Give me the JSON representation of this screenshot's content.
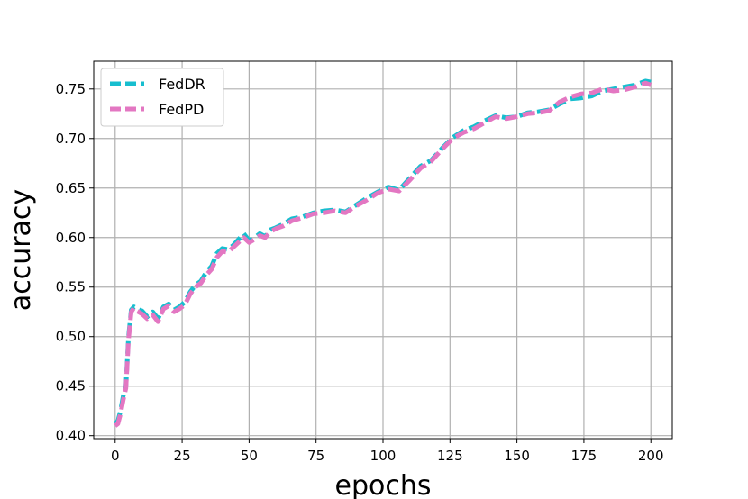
{
  "chart_data": {
    "type": "line",
    "title": "",
    "xlabel": "epochs",
    "ylabel": "accuracy",
    "xlim": [
      -8,
      208
    ],
    "ylim": [
      0.397,
      0.778
    ],
    "xticks": [
      0,
      25,
      50,
      75,
      100,
      125,
      150,
      175,
      200
    ],
    "yticks": [
      0.4,
      0.45,
      0.5,
      0.55,
      0.6,
      0.65,
      0.7,
      0.75
    ],
    "grid": true,
    "legend": "top-left",
    "series": [
      {
        "name": "FedDR",
        "color": "#17becf",
        "dash": "dashed",
        "x": [
          0,
          1,
          2,
          3,
          4,
          5,
          6,
          7,
          8,
          10,
          12,
          14,
          16,
          18,
          20,
          22,
          24,
          26,
          28,
          30,
          32,
          34,
          36,
          38,
          40,
          42,
          44,
          46,
          48,
          50,
          52,
          54,
          56,
          58,
          60,
          63,
          66,
          70,
          74,
          78,
          82,
          86,
          90,
          94,
          98,
          102,
          106,
          110,
          114,
          118,
          122,
          126,
          130,
          134,
          138,
          142,
          146,
          150,
          154,
          158,
          162,
          166,
          170,
          174,
          178,
          182,
          186,
          190,
          194,
          198,
          200
        ],
        "y": [
          0.412,
          0.415,
          0.425,
          0.44,
          0.45,
          0.5,
          0.527,
          0.53,
          0.528,
          0.526,
          0.52,
          0.525,
          0.518,
          0.53,
          0.533,
          0.527,
          0.53,
          0.535,
          0.545,
          0.552,
          0.556,
          0.565,
          0.571,
          0.584,
          0.589,
          0.588,
          0.592,
          0.598,
          0.604,
          0.597,
          0.6,
          0.604,
          0.601,
          0.608,
          0.61,
          0.614,
          0.619,
          0.621,
          0.625,
          0.627,
          0.628,
          0.626,
          0.633,
          0.64,
          0.646,
          0.651,
          0.648,
          0.66,
          0.672,
          0.678,
          0.69,
          0.701,
          0.708,
          0.712,
          0.718,
          0.723,
          0.721,
          0.722,
          0.726,
          0.727,
          0.729,
          0.735,
          0.74,
          0.741,
          0.743,
          0.748,
          0.75,
          0.752,
          0.754,
          0.758,
          0.757
        ]
      },
      {
        "name": "FedPD",
        "color": "#e377c2",
        "dash": "dashed",
        "x": [
          0,
          1,
          2,
          3,
          4,
          5,
          6,
          7,
          8,
          10,
          12,
          14,
          16,
          18,
          20,
          22,
          24,
          26,
          28,
          30,
          32,
          34,
          36,
          38,
          40,
          42,
          44,
          46,
          48,
          50,
          52,
          54,
          56,
          58,
          60,
          63,
          66,
          70,
          74,
          78,
          82,
          86,
          90,
          94,
          98,
          102,
          106,
          110,
          114,
          118,
          122,
          126,
          130,
          134,
          138,
          142,
          146,
          150,
          154,
          158,
          162,
          166,
          170,
          174,
          178,
          182,
          186,
          190,
          194,
          198,
          200
        ],
        "y": [
          0.41,
          0.412,
          0.422,
          0.436,
          0.448,
          0.497,
          0.525,
          0.529,
          0.526,
          0.523,
          0.518,
          0.522,
          0.515,
          0.528,
          0.531,
          0.525,
          0.528,
          0.532,
          0.543,
          0.55,
          0.554,
          0.562,
          0.568,
          0.58,
          0.586,
          0.585,
          0.59,
          0.595,
          0.6,
          0.595,
          0.598,
          0.602,
          0.6,
          0.606,
          0.609,
          0.612,
          0.617,
          0.62,
          0.624,
          0.625,
          0.627,
          0.625,
          0.632,
          0.638,
          0.645,
          0.649,
          0.647,
          0.658,
          0.67,
          0.677,
          0.689,
          0.7,
          0.706,
          0.71,
          0.716,
          0.722,
          0.72,
          0.722,
          0.725,
          0.726,
          0.728,
          0.737,
          0.742,
          0.745,
          0.746,
          0.75,
          0.748,
          0.749,
          0.752,
          0.756,
          0.754
        ]
      }
    ]
  }
}
